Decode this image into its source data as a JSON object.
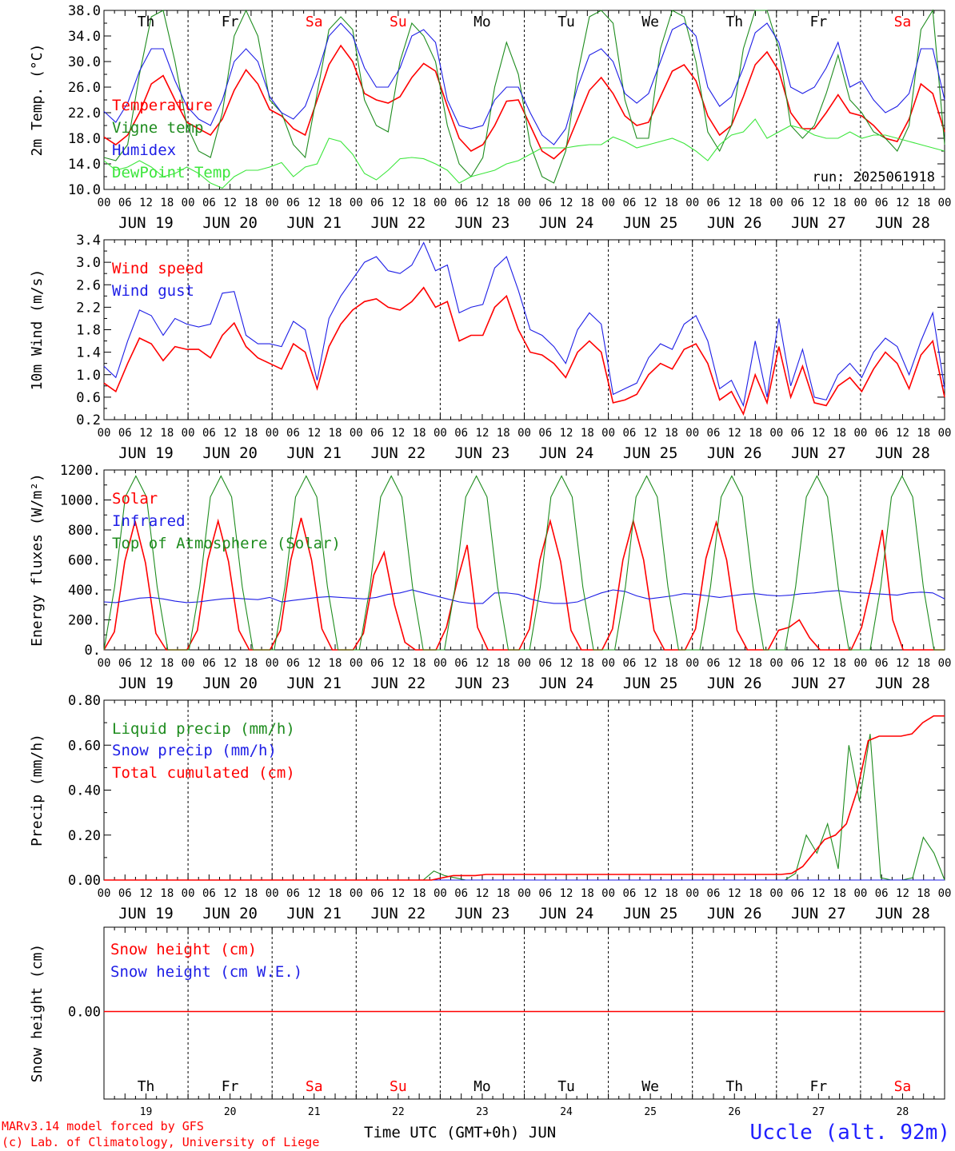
{
  "run_label": "run: 2025061918",
  "station": "Uccle (alt. 92m)",
  "credit_line1": "MARv3.14 model forced by GFS",
  "credit_line2": "(c) Lab. of Climatology, University of Liege",
  "x_title": "Time UTC (GMT+0h) JUN",
  "hour_ticks": [
    "00",
    "06",
    "12",
    "18"
  ],
  "final_hour_tick": "00",
  "days": [
    {
      "num": "19",
      "date": "JUN 19",
      "dow": "Th",
      "weekend": false
    },
    {
      "num": "20",
      "date": "JUN 20",
      "dow": "Fr",
      "weekend": false
    },
    {
      "num": "21",
      "date": "JUN 21",
      "dow": "Sa",
      "weekend": true
    },
    {
      "num": "22",
      "date": "JUN 22",
      "dow": "Su",
      "weekend": true
    },
    {
      "num": "23",
      "date": "JUN 23",
      "dow": "Mo",
      "weekend": false
    },
    {
      "num": "24",
      "date": "JUN 24",
      "dow": "Tu",
      "weekend": false
    },
    {
      "num": "25",
      "date": "JUN 25",
      "dow": "We",
      "weekend": false
    },
    {
      "num": "26",
      "date": "JUN 26",
      "dow": "Th",
      "weekend": false
    },
    {
      "num": "27",
      "date": "JUN 27",
      "dow": "Fr",
      "weekend": false
    },
    {
      "num": "28",
      "date": "JUN 28",
      "dow": "Sa",
      "weekend": true
    }
  ],
  "colors": {
    "red": "#ff0000",
    "green": "#1e8c1e",
    "blue": "#1e1ee6",
    "lightgreen": "#3ce63c",
    "weekend": "#ff0000"
  },
  "chart_data": [
    {
      "type": "line",
      "ylabel": "2m Temp. (°C)",
      "ylim": [
        10,
        38
      ],
      "yticks": [
        "10.0",
        "14.0",
        "18.0",
        "22.0",
        "26.0",
        "30.0",
        "34.0",
        "38.0"
      ],
      "x_hours_step": 6,
      "series": [
        {
          "name": "Temperature",
          "color": "red",
          "values": [
            18.2,
            17,
            18.5,
            22,
            26.5,
            27.8,
            24,
            20.5,
            19.5,
            18.5,
            21,
            25.5,
            28.7,
            26.5,
            22.5,
            21.5,
            19.5,
            18.5,
            24,
            29.5,
            32.5,
            30,
            25,
            24,
            23.5,
            24.5,
            27.5,
            29.7,
            28.5,
            23,
            18,
            16,
            17,
            20,
            23.8,
            24,
            20,
            16,
            14.8,
            16.5,
            21,
            25.5,
            27.5,
            25,
            21.5,
            20,
            20.5,
            24.5,
            28.5,
            29.5,
            27,
            21.5,
            18.5,
            20,
            24.5,
            29.5,
            31.5,
            28.5,
            22,
            19.5,
            19.5,
            22,
            24.8,
            22,
            21.5,
            20,
            18,
            17.5,
            21,
            26.5,
            25,
            19
          ]
        },
        {
          "name": "Vigne temp",
          "color": "green",
          "values": [
            15,
            14.5,
            17,
            28,
            37,
            38,
            30,
            20,
            16,
            15,
            22,
            34,
            38,
            34,
            24,
            22,
            17,
            15,
            25,
            35,
            37,
            35,
            24,
            20,
            19,
            30,
            36,
            34,
            30,
            20,
            14,
            12,
            15,
            26,
            33,
            28,
            17,
            12,
            11,
            16,
            28,
            37,
            38,
            36,
            24,
            18,
            18,
            32,
            38,
            37,
            30,
            19,
            16,
            20,
            32,
            39,
            38,
            32,
            20,
            18,
            20,
            25,
            31,
            24,
            22,
            19,
            18,
            16,
            20,
            35,
            38,
            17
          ]
        },
        {
          "name": "Humidex",
          "color": "blue",
          "values": [
            22.2,
            20.5,
            23.5,
            28.5,
            32,
            32,
            27,
            23,
            21,
            20,
            24,
            30,
            32,
            30,
            24.5,
            22,
            21,
            23,
            28,
            34,
            36,
            34,
            29,
            26,
            26,
            29,
            34,
            35,
            33,
            24,
            20,
            19.5,
            20,
            24,
            26,
            26,
            22,
            18.5,
            17,
            19.5,
            26,
            31,
            32,
            30,
            25,
            23.5,
            25,
            30,
            35,
            36,
            34,
            26,
            23,
            24.5,
            29,
            34.5,
            36,
            33,
            26,
            25,
            26,
            29,
            33,
            26,
            27,
            24,
            22,
            23,
            25,
            32,
            32,
            24
          ]
        },
        {
          "name": "DewPoint Temp",
          "color": "lightgreen",
          "values": [
            14.5,
            13,
            13.5,
            14.5,
            13.5,
            12,
            12.5,
            13.5,
            12.5,
            11,
            10.2,
            12,
            13,
            13,
            13.5,
            14.2,
            12,
            13.5,
            14,
            18,
            17.5,
            15.5,
            12.5,
            11.5,
            13,
            14.8,
            15,
            14.8,
            14,
            13,
            11,
            12,
            12.5,
            13,
            14,
            14.5,
            15.5,
            16.5,
            16.5,
            16.5,
            16.8,
            17,
            17,
            18.2,
            17.5,
            16.5,
            17,
            17.5,
            18,
            17.2,
            16,
            14.5,
            17,
            18.5,
            19,
            21,
            18,
            19,
            20,
            19.5,
            18.5,
            18,
            18,
            19,
            18,
            18.5,
            18.5,
            18,
            17.5,
            17,
            16.5,
            16
          ]
        }
      ]
    },
    {
      "type": "line",
      "ylabel": "10m Wind (m/s)",
      "ylim": [
        0.2,
        3.4
      ],
      "yticks": [
        "0.2",
        "0.6",
        "1.0",
        "1.4",
        "1.8",
        "2.2",
        "2.6",
        "3.0",
        "3.4"
      ],
      "x_hours_step": 6,
      "series": [
        {
          "name": "Wind speed",
          "color": "red",
          "values": [
            0.85,
            0.7,
            1.2,
            1.65,
            1.55,
            1.25,
            1.5,
            1.45,
            1.45,
            1.3,
            1.7,
            1.92,
            1.5,
            1.3,
            1.2,
            1.1,
            1.55,
            1.4,
            0.75,
            1.5,
            1.9,
            2.15,
            2.3,
            2.35,
            2.2,
            2.15,
            2.3,
            2.55,
            2.2,
            2.3,
            1.6,
            1.7,
            1.7,
            2.2,
            2.4,
            1.8,
            1.4,
            1.35,
            1.2,
            0.95,
            1.4,
            1.6,
            1.4,
            0.5,
            0.55,
            0.65,
            1.0,
            1.2,
            1.1,
            1.45,
            1.55,
            1.2,
            0.55,
            0.7,
            0.3,
            1.0,
            0.5,
            1.5,
            0.6,
            1.15,
            0.5,
            0.45,
            0.8,
            0.95,
            0.7,
            1.1,
            1.4,
            1.2,
            0.75,
            1.35,
            1.6,
            0.6
          ]
        },
        {
          "name": "Wind gust",
          "color": "blue",
          "values": [
            1.15,
            0.95,
            1.6,
            2.15,
            2.05,
            1.7,
            2.0,
            1.9,
            1.85,
            1.9,
            2.45,
            2.48,
            1.7,
            1.55,
            1.55,
            1.5,
            1.95,
            1.8,
            0.9,
            2.0,
            2.4,
            2.7,
            3.0,
            3.1,
            2.85,
            2.8,
            2.95,
            3.35,
            2.85,
            2.95,
            2.1,
            2.2,
            2.25,
            2.9,
            3.1,
            2.5,
            1.8,
            1.7,
            1.5,
            1.2,
            1.8,
            2.1,
            1.9,
            0.65,
            0.75,
            0.85,
            1.3,
            1.55,
            1.45,
            1.9,
            2.05,
            1.6,
            0.75,
            0.9,
            0.45,
            1.6,
            0.6,
            2.0,
            0.8,
            1.45,
            0.6,
            0.55,
            1.0,
            1.2,
            0.95,
            1.4,
            1.65,
            1.5,
            1.0,
            1.6,
            2.1,
            0.75
          ]
        }
      ]
    },
    {
      "type": "line",
      "ylabel": "Energy fluxes (W/m²)",
      "ylim": [
        0,
        1200
      ],
      "yticks": [
        "0.",
        "200.",
        "400.",
        "600.",
        "800.",
        "1000.",
        "1200."
      ],
      "x_hours_step": 6,
      "series": [
        {
          "name": "Solar",
          "color": "red",
          "values": [
            0,
            120,
            590,
            860,
            580,
            110,
            0,
            0,
            0,
            130,
            600,
            860,
            590,
            130,
            0,
            0,
            0,
            130,
            600,
            880,
            600,
            140,
            0,
            0,
            0,
            110,
            500,
            650,
            300,
            50,
            0,
            0,
            0,
            150,
            450,
            700,
            150,
            0,
            0,
            0,
            0,
            140,
            600,
            860,
            590,
            130,
            0,
            0,
            0,
            140,
            600,
            860,
            600,
            130,
            0,
            0,
            0,
            140,
            610,
            850,
            600,
            130,
            0,
            0,
            0,
            130,
            150,
            200,
            80,
            0,
            0,
            0,
            0,
            150,
            450,
            800,
            200,
            0,
            0,
            0,
            0,
            0
          ]
        },
        {
          "name": "Infrared",
          "color": "blue",
          "values": [
            320,
            315,
            330,
            345,
            350,
            340,
            325,
            315,
            320,
            330,
            340,
            345,
            340,
            335,
            350,
            320,
            330,
            340,
            350,
            355,
            350,
            345,
            340,
            350,
            370,
            380,
            400,
            380,
            360,
            340,
            320,
            310,
            310,
            380,
            380,
            370,
            340,
            320,
            310,
            310,
            320,
            350,
            380,
            400,
            390,
            360,
            340,
            350,
            360,
            375,
            370,
            360,
            350,
            360,
            370,
            375,
            365,
            360,
            365,
            375,
            380,
            390,
            395,
            385,
            380,
            375,
            370,
            365,
            380,
            385,
            380,
            340
          ]
        },
        {
          "name": "Top of Atmosphere (Solar)",
          "color": "green",
          "values": [
            0,
            420,
            1020,
            1160,
            1020,
            420,
            0,
            0,
            0,
            420,
            1020,
            1160,
            1020,
            420,
            0,
            0,
            0,
            420,
            1020,
            1160,
            1020,
            420,
            0,
            0,
            0,
            420,
            1020,
            1160,
            1020,
            420,
            0,
            0,
            0,
            420,
            1020,
            1160,
            1020,
            420,
            0,
            0,
            0,
            420,
            1020,
            1160,
            1020,
            420,
            0,
            0,
            0,
            420,
            1020,
            1160,
            1020,
            420,
            0,
            0,
            0,
            420,
            1020,
            1160,
            1020,
            420,
            0,
            0,
            0,
            420,
            1020,
            1160,
            1020,
            420,
            0,
            0,
            0,
            420,
            1020,
            1160,
            1020,
            420,
            0,
            0
          ]
        }
      ]
    },
    {
      "type": "line",
      "ylabel": "Precip (mm/h)",
      "ylim": [
        0,
        0.8
      ],
      "yticks": [
        "0.00",
        "0.20",
        "0.40",
        "0.60",
        "0.80"
      ],
      "x_hours_step": 6,
      "series": [
        {
          "name": "Liquid precip (mm/h)",
          "color": "green",
          "values": [
            0,
            0,
            0,
            0,
            0,
            0,
            0,
            0,
            0,
            0,
            0,
            0,
            0,
            0,
            0,
            0,
            0,
            0,
            0,
            0,
            0,
            0,
            0,
            0,
            0,
            0,
            0,
            0,
            0,
            0,
            0,
            0.04,
            0.02,
            0.01,
            0,
            0,
            0,
            0,
            0,
            0,
            0,
            0,
            0,
            0,
            0,
            0,
            0,
            0,
            0,
            0,
            0,
            0,
            0,
            0,
            0,
            0,
            0,
            0,
            0,
            0,
            0,
            0,
            0,
            0,
            0,
            0.03,
            0.2,
            0.12,
            0.25,
            0.05,
            0.6,
            0.35,
            0.65,
            0.01,
            0,
            0,
            0.01,
            0.19,
            0.12,
            0
          ]
        },
        {
          "name": "Snow precip (mm/h)",
          "color": "blue",
          "values": [
            0,
            0,
            0,
            0,
            0,
            0,
            0,
            0,
            0,
            0,
            0,
            0,
            0,
            0,
            0,
            0,
            0,
            0,
            0,
            0,
            0,
            0,
            0,
            0,
            0,
            0,
            0,
            0,
            0,
            0,
            0,
            0,
            0,
            0,
            0,
            0,
            0,
            0,
            0,
            0,
            0,
            0,
            0,
            0,
            0,
            0,
            0,
            0,
            0,
            0,
            0,
            0,
            0,
            0,
            0,
            0,
            0,
            0,
            0,
            0,
            0,
            0,
            0,
            0,
            0,
            0,
            0,
            0,
            0,
            0,
            0,
            0,
            0,
            0,
            0,
            0,
            0,
            0,
            0,
            0
          ]
        },
        {
          "name": "Total cumulated (cm)",
          "color": "red",
          "values": [
            0,
            0,
            0,
            0,
            0,
            0,
            0,
            0,
            0,
            0,
            0,
            0,
            0,
            0,
            0,
            0,
            0,
            0,
            0,
            0,
            0,
            0,
            0,
            0,
            0,
            0,
            0,
            0,
            0,
            0,
            0,
            0.01,
            0.02,
            0.02,
            0.02,
            0.025,
            0.025,
            0.025,
            0.025,
            0.025,
            0.025,
            0.025,
            0.025,
            0.025,
            0.025,
            0.025,
            0.025,
            0.025,
            0.025,
            0.025,
            0.025,
            0.025,
            0.025,
            0.025,
            0.025,
            0.025,
            0.025,
            0.025,
            0.025,
            0.025,
            0.025,
            0.025,
            0.025,
            0.03,
            0.06,
            0.12,
            0.18,
            0.2,
            0.25,
            0.4,
            0.62,
            0.64,
            0.64,
            0.64,
            0.65,
            0.7,
            0.73,
            0.73
          ]
        }
      ]
    },
    {
      "type": "line",
      "ylabel": "Snow height (cm)",
      "yticks": [
        "0.00"
      ],
      "series": [
        {
          "name": "Snow height (cm)",
          "color": "red",
          "values": [
            0,
            0
          ]
        },
        {
          "name": "Snow height (cm W.E.)",
          "color": "blue",
          "values": [
            0,
            0
          ]
        }
      ]
    }
  ]
}
